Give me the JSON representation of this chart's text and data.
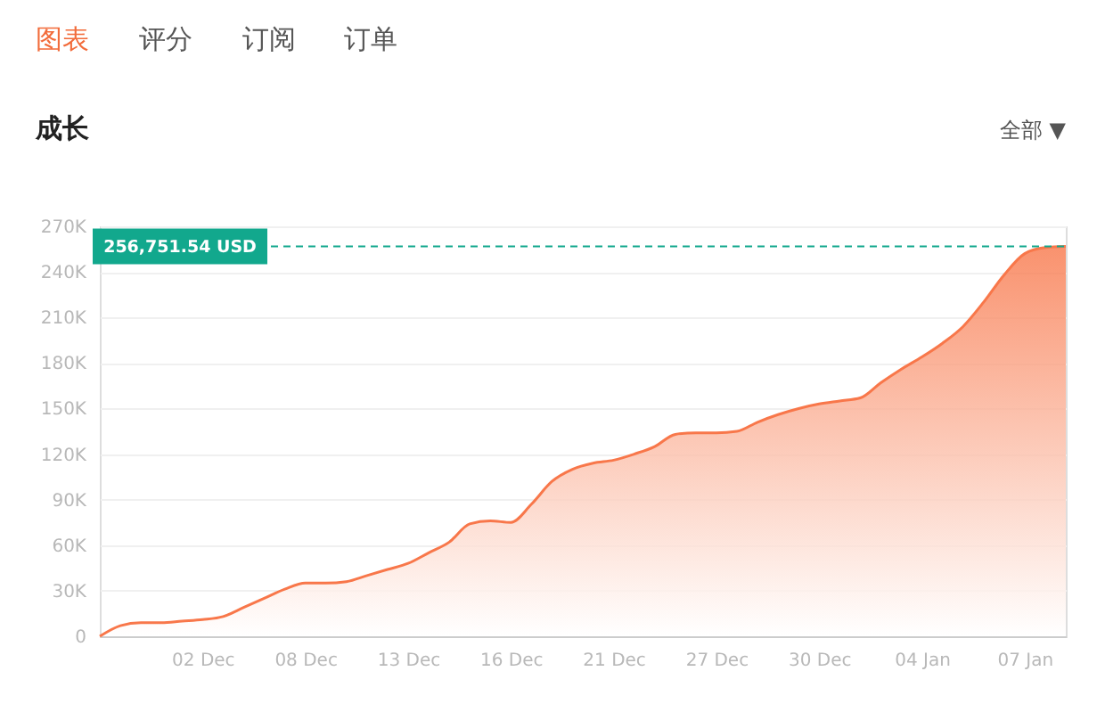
{
  "chart_data": {
    "type": "area",
    "title": "成长",
    "categories": [
      null,
      null,
      null,
      null,
      null,
      "02 Dec",
      null,
      null,
      null,
      null,
      "08 Dec",
      null,
      null,
      null,
      null,
      "13 Dec",
      null,
      null,
      null,
      null,
      "16 Dec",
      null,
      null,
      null,
      null,
      "21 Dec",
      null,
      null,
      null,
      null,
      "27 Dec",
      null,
      null,
      null,
      null,
      "30 Dec",
      null,
      null,
      null,
      null,
      "04 Jan",
      null,
      null,
      null,
      null,
      "07 Jan",
      null,
      null
    ],
    "series": [
      {
        "color": "#f8774a",
        "values": [
          0,
          7000,
          9000,
          9000,
          10000,
          11000,
          13000,
          19000,
          25000,
          31000,
          35000,
          35000,
          36000,
          40000,
          44000,
          48000,
          55000,
          62000,
          74000,
          76000,
          75000,
          87000,
          102000,
          110000,
          114000,
          116000,
          120000,
          125000,
          133000,
          134000,
          134000,
          135000,
          141000,
          146000,
          150000,
          153000,
          155000,
          157000,
          167000,
          176000,
          184000,
          193000,
          204000,
          220000,
          238000,
          252000,
          256000,
          256751.54
        ]
      }
    ],
    "ylim": [
      0,
      270000
    ],
    "yticks": [
      {
        "value": 0,
        "label": "0"
      },
      {
        "value": 30000,
        "label": "30K"
      },
      {
        "value": 60000,
        "label": "60K"
      },
      {
        "value": 90000,
        "label": "90K"
      },
      {
        "value": 120000,
        "label": "120K"
      },
      {
        "value": 150000,
        "label": "150K"
      },
      {
        "value": 180000,
        "label": "180K"
      },
      {
        "value": 210000,
        "label": "210K"
      },
      {
        "value": 240000,
        "label": "240K"
      },
      {
        "value": 270000,
        "label": "270K"
      }
    ],
    "grid": "y",
    "ref_lines": [
      {
        "axis": "y",
        "value": 256751.54,
        "label": "256,751.54 USD",
        "color": "#12a88d",
        "line_style": "dashed"
      }
    ],
    "annotations": [
      "图表",
      "评分",
      "订阅",
      "订单",
      "全部 ▼"
    ]
  }
}
